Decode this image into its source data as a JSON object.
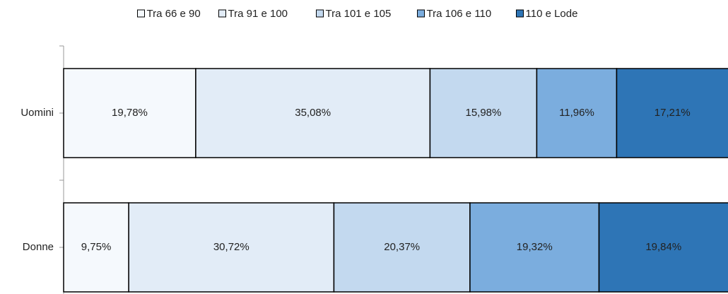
{
  "chart_data": {
    "type": "stacked_barh",
    "categories": [
      "Uomini",
      "Donne"
    ],
    "series": [
      {
        "name": "Tra 66 e 90",
        "color": "#f5f9fd",
        "values": [
          19.78,
          9.75
        ],
        "value_labels": [
          "19,78%",
          "9,75%"
        ]
      },
      {
        "name": "Tra 91 e 100",
        "color": "#e2ecf7",
        "values": [
          35.08,
          30.72
        ],
        "value_labels": [
          "35,08%",
          "30,72%"
        ]
      },
      {
        "name": "Tra 101 e 105",
        "color": "#c3d9ef",
        "values": [
          15.98,
          20.37
        ],
        "value_labels": [
          "15,98%",
          "20,37%"
        ]
      },
      {
        "name": "Tra 106 e 110",
        "color": "#7badde",
        "values": [
          11.96,
          19.32
        ],
        "value_labels": [
          "11,96%",
          "19,32%"
        ]
      },
      {
        "name": "110 e Lode",
        "color": "#2e75b6",
        "values": [
          17.21,
          19.84
        ],
        "value_labels": [
          "17,21%",
          "19,84%"
        ]
      }
    ],
    "xlim": [
      0,
      100
    ],
    "legend": "top"
  }
}
